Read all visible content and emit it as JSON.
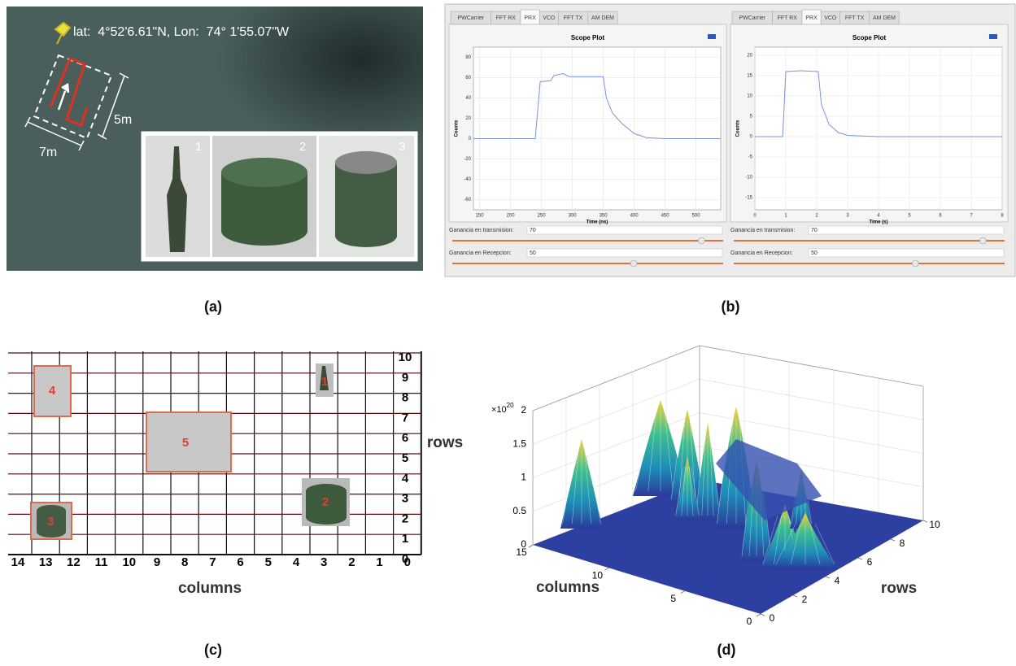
{
  "panels": {
    "a": {
      "caption": "(a)",
      "coordinates": "lat:  4°52'6.61\"N, Lon:  74° 1'55.07\"W",
      "width_label": "5m",
      "length_label": "7m",
      "inset_labels": [
        "1",
        "2",
        "3"
      ]
    },
    "b": {
      "caption": "(b)",
      "plots": [
        {
          "tabs": [
            "PWCarrier",
            "FFT RX",
            "PRX",
            "VCO",
            "FFT TX",
            "AM DEM"
          ],
          "active_tab": 2,
          "title": "Scope Plot",
          "ylabel": "Counts",
          "xlabel": "Time (ns)",
          "color": "#7b93e0",
          "x": [
            140,
            240,
            248,
            265,
            270,
            285,
            295,
            350,
            355,
            365,
            380,
            400,
            420,
            450,
            540
          ],
          "values": [
            0,
            0,
            56,
            57,
            62,
            64,
            61,
            61,
            40,
            25,
            15,
            5,
            1,
            0,
            0
          ],
          "xlim": [
            140,
            540
          ],
          "ylim": [
            -70,
            90
          ],
          "xticks": [
            150,
            200,
            250,
            300,
            350,
            400,
            450,
            500
          ],
          "yticks": [
            -60,
            -40,
            -20,
            0,
            20,
            40,
            60,
            80
          ],
          "grid": true,
          "sliders": [
            {
              "label": "Ganancia en transmision:",
              "value": "70"
            },
            {
              "label": "Ganancia en Recepcion:",
              "value": "50"
            }
          ]
        },
        {
          "tabs": [
            "PWCarrier",
            "FFT RX",
            "PRX",
            "VCO",
            "FFT TX",
            "AM DEM"
          ],
          "active_tab": 2,
          "title": "Scope Plot",
          "ylabel": "Counts",
          "xlabel": "Time (s)",
          "color": "#7b93e0",
          "x": [
            0,
            0.9,
            1.0,
            1.5,
            2.05,
            2.15,
            2.4,
            2.7,
            3,
            4,
            8
          ],
          "values": [
            0,
            0,
            16,
            16.2,
            16,
            8,
            3,
            1,
            0.3,
            0,
            0
          ],
          "xlim": [
            0,
            8
          ],
          "ylim": [
            -18,
            22
          ],
          "xticks": [
            0,
            1,
            2,
            3,
            4,
            5,
            6,
            7,
            8
          ],
          "yticks": [
            -15,
            -10,
            -5,
            0,
            5,
            10,
            15,
            20
          ],
          "grid": true,
          "sliders": [
            {
              "label": "Ganancia en transmision:",
              "value": "70"
            },
            {
              "label": "Ganancia en Recepcion:",
              "value": "50"
            }
          ]
        }
      ]
    },
    "c": {
      "caption": "(c)",
      "columns_label": "columns",
      "rows_label": "rows",
      "columns": [
        14,
        13,
        12,
        11,
        10,
        9,
        8,
        7,
        6,
        5,
        4,
        3,
        2,
        1,
        0
      ],
      "rows": [
        0,
        1,
        2,
        3,
        4,
        5,
        6,
        7,
        8,
        9,
        10
      ],
      "objects": [
        "1",
        "2",
        "3",
        "4",
        "5"
      ]
    },
    "d": {
      "caption": "(d)",
      "columns_label": "columns",
      "rows_label": "rows",
      "z_scale_base": "×10",
      "z_scale_exponent": "20",
      "zlim": [
        0,
        2
      ],
      "zticks": [
        0,
        0.5,
        1,
        1.5,
        2
      ],
      "column_lim": [
        0,
        15
      ],
      "column_ticks": [
        15,
        10,
        5,
        0
      ],
      "row_lim": [
        0,
        10
      ],
      "row_ticks": [
        0,
        2,
        4,
        6,
        8,
        10
      ]
    }
  }
}
